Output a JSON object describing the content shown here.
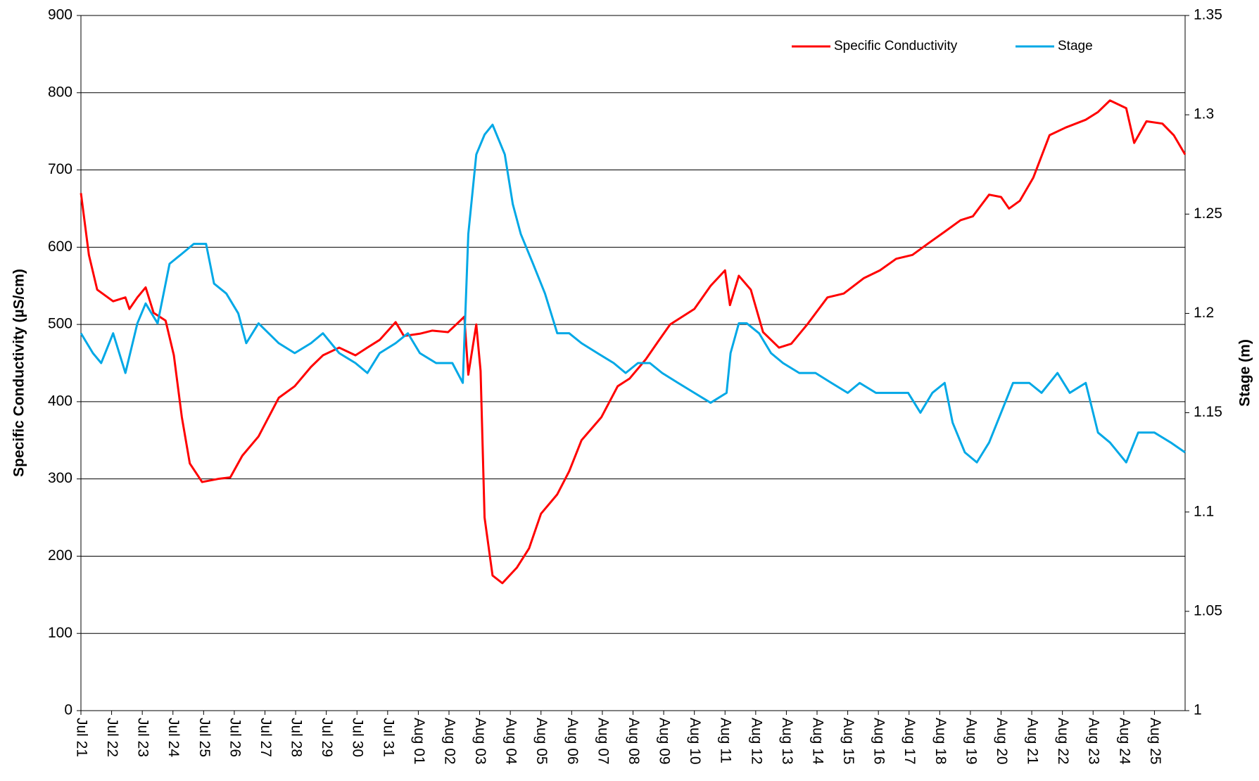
{
  "chart_data": {
    "type": "line",
    "y_label": "Specific Conductivity (µS/cm)",
    "y2_label": "Stage (m)",
    "xlim": [
      0,
      36
    ],
    "xticks": [
      {
        "value": 0,
        "label": "Jul 21"
      },
      {
        "value": 1,
        "label": "Jul 22"
      },
      {
        "value": 2,
        "label": "Jul 23"
      },
      {
        "value": 3,
        "label": "Jul 24"
      },
      {
        "value": 4,
        "label": "Jul 25"
      },
      {
        "value": 5,
        "label": "Jul 26"
      },
      {
        "value": 6,
        "label": "Jul 27"
      },
      {
        "value": 7,
        "label": "Jul 28"
      },
      {
        "value": 8,
        "label": "Jul 29"
      },
      {
        "value": 9,
        "label": "Jul 30"
      },
      {
        "value": 10,
        "label": "Jul 31"
      },
      {
        "value": 11,
        "label": "Aug 01"
      },
      {
        "value": 12,
        "label": "Aug 02"
      },
      {
        "value": 13,
        "label": "Aug 03"
      },
      {
        "value": 14,
        "label": "Aug 04"
      },
      {
        "value": 15,
        "label": "Aug 05"
      },
      {
        "value": 16,
        "label": "Aug 06"
      },
      {
        "value": 17,
        "label": "Aug 07"
      },
      {
        "value": 18,
        "label": "Aug 08"
      },
      {
        "value": 19,
        "label": "Aug 09"
      },
      {
        "value": 20,
        "label": "Aug 10"
      },
      {
        "value": 21,
        "label": "Aug 11"
      },
      {
        "value": 22,
        "label": "Aug 12"
      },
      {
        "value": 23,
        "label": "Aug 13"
      },
      {
        "value": 24,
        "label": "Aug 14"
      },
      {
        "value": 25,
        "label": "Aug 15"
      },
      {
        "value": 26,
        "label": "Aug 16"
      },
      {
        "value": 27,
        "label": "Aug 17"
      },
      {
        "value": 28,
        "label": "Aug 18"
      },
      {
        "value": 29,
        "label": "Aug 19"
      },
      {
        "value": 30,
        "label": "Aug 20"
      },
      {
        "value": 31,
        "label": "Aug 21"
      },
      {
        "value": 32,
        "label": "Aug 22"
      },
      {
        "value": 33,
        "label": "Aug 23"
      },
      {
        "value": 34,
        "label": "Aug 24"
      },
      {
        "value": 35,
        "label": "Aug 25"
      }
    ],
    "ylim": [
      0,
      900
    ],
    "yticks": [
      0,
      100,
      200,
      300,
      400,
      500,
      600,
      700,
      800,
      900
    ],
    "y2lim": [
      1,
      1.35
    ],
    "y2ticks": [
      1,
      1.05,
      1.1,
      1.15,
      1.2,
      1.25,
      1.3,
      1.35
    ],
    "grid": true,
    "legend": "top-right",
    "series": [
      {
        "name": "Specific Conductivity",
        "color": "#ff0000",
        "axis": "y",
        "x": [
          0,
          0.26,
          0.53,
          1.05,
          1.45,
          1.58,
          1.84,
          2.11,
          2.37,
          2.76,
          3.03,
          3.29,
          3.55,
          3.95,
          4.47,
          4.87,
          5.26,
          5.79,
          6.45,
          6.97,
          7.5,
          7.89,
          8.42,
          8.95,
          9.34,
          9.74,
          10.26,
          10.53,
          11.05,
          11.45,
          11.97,
          12.37,
          12.5,
          12.63,
          12.89,
          13.03,
          13.16,
          13.42,
          13.74,
          14.21,
          14.61,
          15,
          15.53,
          15.92,
          16.32,
          16.97,
          17.5,
          17.89,
          18.42,
          18.82,
          19.21,
          20,
          20.53,
          21,
          21.16,
          21.45,
          21.84,
          22.24,
          22.76,
          23.16,
          23.68,
          24.34,
          24.87,
          25.53,
          26.05,
          26.58,
          27.11,
          27.63,
          28.16,
          28.68,
          29.08,
          29.61,
          30,
          30.26,
          30.61,
          31.05,
          31.58,
          32.11,
          32.76,
          33.16,
          33.55,
          34.08,
          34.34,
          34.74,
          35.26,
          35.63,
          36
        ],
        "values": [
          670,
          590,
          545,
          530,
          535,
          520,
          535,
          548,
          515,
          505,
          460,
          380,
          320,
          296,
          300,
          302,
          330,
          355,
          405,
          420,
          445,
          460,
          470,
          460,
          470,
          480,
          503,
          485,
          488,
          492,
          490,
          505,
          510,
          435,
          500,
          440,
          250,
          175,
          165,
          185,
          210,
          255,
          280,
          310,
          350,
          380,
          420,
          430,
          455,
          478,
          500,
          520,
          550,
          570,
          525,
          563,
          545,
          490,
          470,
          475,
          500,
          535,
          540,
          560,
          570,
          585,
          590,
          605,
          620,
          635,
          640,
          668,
          665,
          650,
          660,
          690,
          745,
          755,
          765,
          775,
          790,
          780,
          735,
          763,
          760,
          745,
          720
        ]
      },
      {
        "name": "Stage",
        "color": "#00a8e6",
        "axis": "y2",
        "x": [
          0,
          0.39,
          0.66,
          1.05,
          1.45,
          1.84,
          2.11,
          2.5,
          2.89,
          3.29,
          3.68,
          4.08,
          4.34,
          4.74,
          5.13,
          5.39,
          5.79,
          6.45,
          6.97,
          7.5,
          7.89,
          8.42,
          8.95,
          9.34,
          9.74,
          10.26,
          10.66,
          11.05,
          11.58,
          12.11,
          12.45,
          12.63,
          12.89,
          13.16,
          13.42,
          13.82,
          14.08,
          14.34,
          14.74,
          15.13,
          15.53,
          15.92,
          16.32,
          16.84,
          17.37,
          17.76,
          18.16,
          18.55,
          18.95,
          19.47,
          20,
          20.53,
          21.05,
          21.18,
          21.45,
          21.71,
          22.11,
          22.5,
          22.89,
          23.42,
          23.95,
          24.47,
          25,
          25.39,
          25.92,
          26.45,
          26.97,
          27.37,
          27.76,
          28.16,
          28.42,
          28.82,
          29.21,
          29.61,
          30,
          30.39,
          30.92,
          31.32,
          31.84,
          32.24,
          32.76,
          33.16,
          33.55,
          34.08,
          34.47,
          35,
          35.53,
          36
        ],
        "values": [
          1.19,
          1.18,
          1.175,
          1.19,
          1.17,
          1.195,
          1.205,
          1.195,
          1.225,
          1.23,
          1.235,
          1.235,
          1.215,
          1.21,
          1.2,
          1.185,
          1.195,
          1.185,
          1.18,
          1.185,
          1.19,
          1.18,
          1.175,
          1.17,
          1.18,
          1.185,
          1.19,
          1.18,
          1.175,
          1.175,
          1.165,
          1.24,
          1.28,
          1.29,
          1.295,
          1.28,
          1.255,
          1.24,
          1.225,
          1.21,
          1.19,
          1.19,
          1.185,
          1.18,
          1.175,
          1.17,
          1.175,
          1.175,
          1.17,
          1.165,
          1.16,
          1.155,
          1.16,
          1.18,
          1.195,
          1.195,
          1.19,
          1.18,
          1.175,
          1.17,
          1.17,
          1.165,
          1.16,
          1.165,
          1.16,
          1.16,
          1.16,
          1.15,
          1.16,
          1.165,
          1.145,
          1.13,
          1.125,
          1.135,
          1.15,
          1.165,
          1.165,
          1.16,
          1.17,
          1.16,
          1.165,
          1.14,
          1.135,
          1.125,
          1.14,
          1.14,
          1.135,
          1.13
        ]
      }
    ]
  }
}
